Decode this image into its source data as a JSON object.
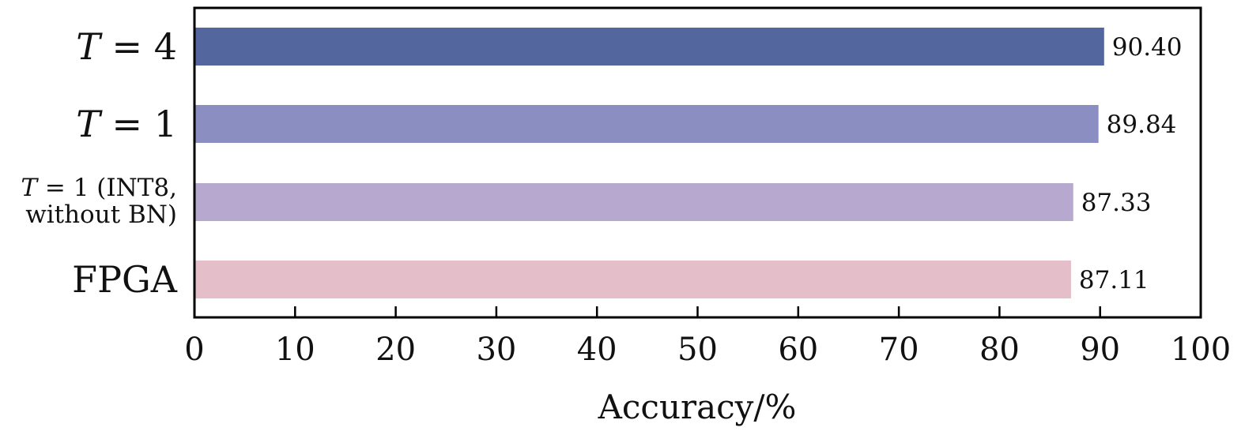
{
  "chart_data": {
    "type": "bar",
    "orientation": "horizontal",
    "categories": [
      "T = 4",
      "T = 1",
      "T = 1 (INT8, without BN)",
      "FPGA"
    ],
    "category_lines": [
      [
        "T = 4"
      ],
      [
        "T = 1"
      ],
      [
        "T = 1 (INT8,",
        "without BN)"
      ],
      [
        "FPGA"
      ]
    ],
    "values": [
      90.4,
      89.84,
      87.33,
      87.11
    ],
    "value_labels": [
      "90.40",
      "89.84",
      "87.33",
      "87.11"
    ],
    "colors": [
      "#53669e",
      "#8a8ec0",
      "#b6a8ce",
      "#e4bfca"
    ],
    "title": "",
    "xlabel": "Accuracy/%",
    "ylabel": "",
    "xlim": [
      0,
      100
    ],
    "xticks": [
      0,
      10,
      20,
      30,
      40,
      50,
      60,
      70,
      80,
      90,
      100
    ],
    "xtick_labels": [
      "0",
      "10",
      "20",
      "30",
      "40",
      "50",
      "60",
      "70",
      "80",
      "90",
      "100"
    ],
    "grid": false,
    "legend": "none"
  }
}
